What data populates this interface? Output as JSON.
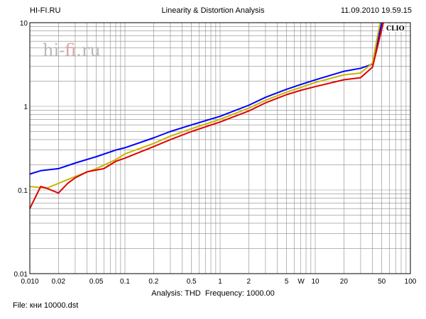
{
  "header": {
    "left": "HI-FI.RU",
    "title": "Linearity & Distortion Analysis",
    "datetime": "11.09.2010 19.59.15"
  },
  "footer": {
    "analysis_label": "Analysis:",
    "analysis_value": "THD",
    "frequency_label": "Frequency:",
    "frequency_value": "1000.00",
    "file_label": "File:",
    "file_value": "кни 10000.dst"
  },
  "watermark": {
    "prefix": "hi-",
    "accent": "fi",
    "suffix": ".ru"
  },
  "badge": "CLIO",
  "colors": {
    "background": "#ffffff",
    "grid": "#8a8a8a",
    "series_blue": "#0000ff",
    "series_olive": "#c8b400",
    "series_red": "#e00000",
    "watermark_accent": "#d8a0a0"
  },
  "chart_data": {
    "type": "line",
    "title": "Linearity & Distortion Analysis",
    "x_scale": "log",
    "y_scale": "log",
    "xlim": [
      0.01,
      100
    ],
    "ylim": [
      0.01,
      10
    ],
    "grid": true,
    "x_ticks": [
      {
        "value": 0.01,
        "label": "0.010"
      },
      {
        "value": 0.02,
        "label": "0.02"
      },
      {
        "value": 0.05,
        "label": "0.05"
      },
      {
        "value": 0.1,
        "label": "0.1"
      },
      {
        "value": 0.2,
        "label": "0.2"
      },
      {
        "value": 0.5,
        "label": "0.5"
      },
      {
        "value": 1,
        "label": "1"
      },
      {
        "value": 2,
        "label": "2"
      },
      {
        "value": 5,
        "label": "5"
      },
      {
        "value": 7.1,
        "label": "W"
      },
      {
        "value": 10,
        "label": "10"
      },
      {
        "value": 20,
        "label": "20"
      },
      {
        "value": 50,
        "label": "50"
      },
      {
        "value": 100,
        "label": "100"
      }
    ],
    "y_ticks": [
      {
        "value": 0.01,
        "label": "0.01"
      },
      {
        "value": 0.1,
        "label": "0.1"
      },
      {
        "value": 1,
        "label": "1"
      },
      {
        "value": 10,
        "label": "10"
      }
    ],
    "series": [
      {
        "color": "#0000ff",
        "points": [
          [
            0.01,
            0.155
          ],
          [
            0.013,
            0.17
          ],
          [
            0.02,
            0.18
          ],
          [
            0.03,
            0.21
          ],
          [
            0.05,
            0.25
          ],
          [
            0.08,
            0.3
          ],
          [
            0.1,
            0.32
          ],
          [
            0.2,
            0.42
          ],
          [
            0.3,
            0.5
          ],
          [
            0.5,
            0.6
          ],
          [
            1,
            0.76
          ],
          [
            2,
            1.03
          ],
          [
            3,
            1.28
          ],
          [
            5,
            1.6
          ],
          [
            7,
            1.82
          ],
          [
            10,
            2.07
          ],
          [
            20,
            2.62
          ],
          [
            30,
            2.85
          ],
          [
            40,
            3.2
          ],
          [
            50,
            10
          ]
        ]
      },
      {
        "color": "#c8b400",
        "points": [
          [
            0.01,
            0.11
          ],
          [
            0.015,
            0.105
          ],
          [
            0.02,
            0.12
          ],
          [
            0.03,
            0.145
          ],
          [
            0.05,
            0.18
          ],
          [
            0.08,
            0.23
          ],
          [
            0.1,
            0.27
          ],
          [
            0.2,
            0.36
          ],
          [
            0.3,
            0.44
          ],
          [
            0.5,
            0.54
          ],
          [
            1,
            0.7
          ],
          [
            2,
            0.95
          ],
          [
            3,
            1.18
          ],
          [
            5,
            1.48
          ],
          [
            7,
            1.68
          ],
          [
            10,
            1.93
          ],
          [
            20,
            2.38
          ],
          [
            30,
            2.5
          ],
          [
            40,
            3.3
          ],
          [
            48,
            10
          ]
        ]
      },
      {
        "color": "#e00000",
        "points": [
          [
            0.01,
            0.06
          ],
          [
            0.013,
            0.11
          ],
          [
            0.015,
            0.105
          ],
          [
            0.02,
            0.092
          ],
          [
            0.025,
            0.12
          ],
          [
            0.03,
            0.14
          ],
          [
            0.04,
            0.165
          ],
          [
            0.06,
            0.18
          ],
          [
            0.08,
            0.22
          ],
          [
            0.1,
            0.24
          ],
          [
            0.2,
            0.33
          ],
          [
            0.3,
            0.4
          ],
          [
            0.5,
            0.5
          ],
          [
            1,
            0.65
          ],
          [
            2,
            0.88
          ],
          [
            3,
            1.1
          ],
          [
            5,
            1.38
          ],
          [
            7,
            1.55
          ],
          [
            10,
            1.72
          ],
          [
            20,
            2.08
          ],
          [
            30,
            2.2
          ],
          [
            40,
            2.95
          ],
          [
            52,
            10
          ]
        ]
      }
    ]
  }
}
